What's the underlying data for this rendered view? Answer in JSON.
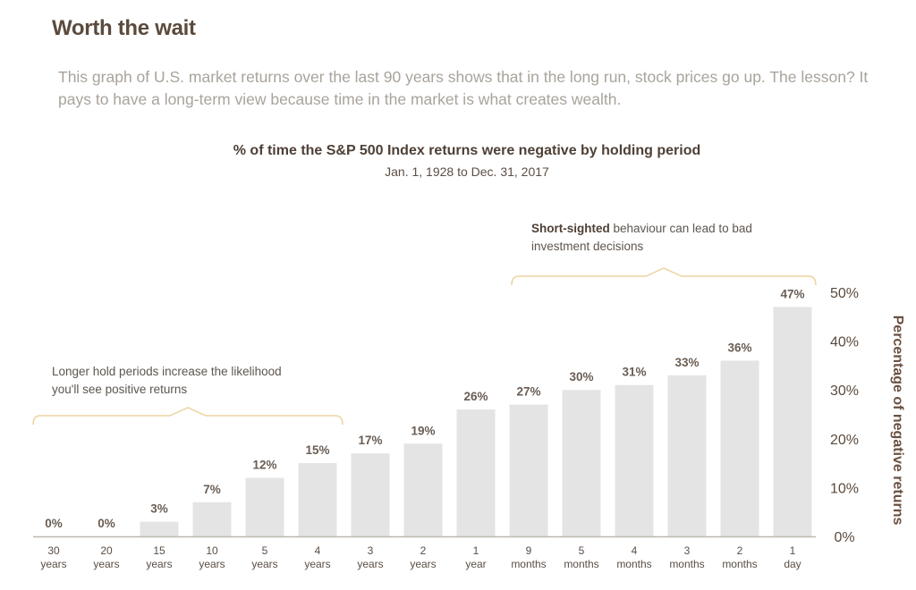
{
  "header": {
    "title": "Worth the wait",
    "intro": "This graph of U.S. market returns over the last 90 years shows that in the long run, stock prices go up. The lesson? It pays to have a long-term view because time in the market is what creates wealth."
  },
  "chart_data": {
    "type": "bar",
    "title": "% of time the S&P 500 Index returns were negative by holding period",
    "subtitle": "Jan. 1, 1928 to Dec. 31, 2017",
    "ylabel": "Percentage of negative returns",
    "xlabel": "",
    "ylim": [
      0,
      50
    ],
    "yticks": [
      "0%",
      "10%",
      "20%",
      "30%",
      "40%",
      "50%"
    ],
    "y_axis_position": "right",
    "grid": false,
    "bar_color": "#e4e4e4",
    "categories": [
      [
        "30",
        "years"
      ],
      [
        "20",
        "years"
      ],
      [
        "15",
        "years"
      ],
      [
        "10",
        "years"
      ],
      [
        "5",
        "years"
      ],
      [
        "4",
        "years"
      ],
      [
        "3",
        "years"
      ],
      [
        "2",
        "years"
      ],
      [
        "1",
        "year"
      ],
      [
        "9",
        "months"
      ],
      [
        "5",
        "months"
      ],
      [
        "4",
        "months"
      ],
      [
        "3",
        "months"
      ],
      [
        "2",
        "months"
      ],
      [
        "1",
        "day"
      ]
    ],
    "values": [
      0,
      0,
      3,
      7,
      12,
      15,
      17,
      19,
      26,
      27,
      30,
      31,
      33,
      36,
      47
    ],
    "data_labels": [
      "0%",
      "0%",
      "3%",
      "7%",
      "12%",
      "15%",
      "17%",
      "19%",
      "26%",
      "27%",
      "30%",
      "31%",
      "33%",
      "36%",
      "47%"
    ],
    "annotations": [
      {
        "text": "Longer hold periods increase the likelihood you'll see positive returns",
        "spans": [
          "30 years",
          "4 years"
        ]
      },
      {
        "bold": "Short-sighted",
        "text": " behaviour can lead to bad investment decisions",
        "spans": [
          "9 months",
          "1 day"
        ]
      }
    ],
    "bracket_color": "#ecd3a0"
  }
}
